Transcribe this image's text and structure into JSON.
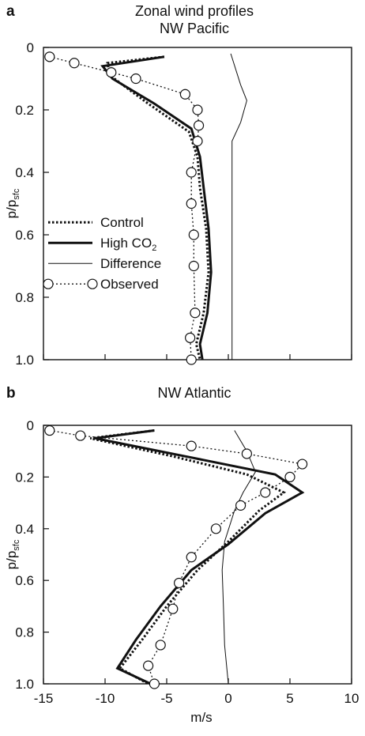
{
  "chart_data": [
    {
      "panel": "a",
      "type": "line",
      "title": "Zonal wind profiles",
      "subtitle": "NW Pacific",
      "ylabel": "p/p_sfc",
      "ylabel_main": "p/p",
      "ylabel_sub": "sfc",
      "xlabel": "",
      "xlim": [
        -15,
        10
      ],
      "ylim": [
        0,
        1.0
      ],
      "y_inverted": true,
      "yticks": [
        "0",
        "0.2",
        "0.4",
        "0.6",
        "0.8",
        "1.0"
      ],
      "yticks_values": [
        0,
        0.2,
        0.4,
        0.6,
        0.8,
        1.0
      ],
      "xticks": [
        "-15",
        "-10",
        "-5",
        "0",
        "5",
        "10"
      ],
      "xticks_values": [
        -15,
        -10,
        -5,
        0,
        5,
        10
      ],
      "show_x_ticklabels": false,
      "legend": {
        "position": "middle-left",
        "entries": [
          {
            "label": "Control",
            "style": "dotted-thick"
          },
          {
            "label": "High CO",
            "sub": "2",
            "style": "solid-thick"
          },
          {
            "label": "Difference",
            "style": "solid-thin"
          },
          {
            "label": "Observed",
            "style": "dotted-circle"
          }
        ]
      },
      "series": [
        {
          "name": "Control",
          "style": "dotted-thick",
          "points": [
            [
              -5.2,
              0.03
            ],
            [
              -9.8,
              0.05
            ],
            [
              -9.6,
              0.09
            ],
            [
              -6.5,
              0.18
            ],
            [
              -3.2,
              0.27
            ],
            [
              -2.5,
              0.35
            ],
            [
              -2.3,
              0.45
            ],
            [
              -1.8,
              0.58
            ],
            [
              -1.6,
              0.72
            ],
            [
              -2.0,
              0.85
            ],
            [
              -2.6,
              0.95
            ],
            [
              -2.3,
              1.0
            ]
          ]
        },
        {
          "name": "High CO2",
          "style": "solid-thick",
          "points": [
            [
              -5.2,
              0.03
            ],
            [
              -10.2,
              0.06
            ],
            [
              -9.4,
              0.1
            ],
            [
              -6.0,
              0.18
            ],
            [
              -3.0,
              0.26
            ],
            [
              -2.3,
              0.35
            ],
            [
              -2.0,
              0.45
            ],
            [
              -1.6,
              0.58
            ],
            [
              -1.4,
              0.72
            ],
            [
              -1.7,
              0.85
            ],
            [
              -2.3,
              0.95
            ],
            [
              -2.1,
              1.0
            ]
          ]
        },
        {
          "name": "Difference",
          "style": "solid-thin",
          "points": [
            [
              0.2,
              0.02
            ],
            [
              1.0,
              0.12
            ],
            [
              1.5,
              0.17
            ],
            [
              1.0,
              0.24
            ],
            [
              0.3,
              0.3
            ],
            [
              0.3,
              0.4
            ],
            [
              0.3,
              0.55
            ],
            [
              0.3,
              0.7
            ],
            [
              0.3,
              0.85
            ],
            [
              0.3,
              1.0
            ]
          ]
        },
        {
          "name": "Observed",
          "style": "dotted-circle",
          "points": [
            [
              -14.5,
              0.03
            ],
            [
              -12.5,
              0.05
            ],
            [
              -9.5,
              0.08
            ],
            [
              -7.5,
              0.1
            ],
            [
              -3.5,
              0.15
            ],
            [
              -2.5,
              0.2
            ],
            [
              -2.4,
              0.25
            ],
            [
              -2.5,
              0.3
            ],
            [
              -3.0,
              0.4
            ],
            [
              -3.0,
              0.5
            ],
            [
              -2.8,
              0.6
            ],
            [
              -2.8,
              0.7
            ],
            [
              -2.7,
              0.85
            ],
            [
              -3.1,
              0.93
            ],
            [
              -3.0,
              1.0
            ]
          ]
        }
      ]
    },
    {
      "panel": "b",
      "type": "line",
      "title": "NW Atlantic",
      "ylabel": "p/p_sfc",
      "ylabel_main": "p/p",
      "ylabel_sub": "sfc",
      "xlabel": "m/s",
      "xlim": [
        -15,
        10
      ],
      "ylim": [
        0,
        1.0
      ],
      "y_inverted": true,
      "yticks": [
        "0",
        "0.2",
        "0.4",
        "0.6",
        "0.8",
        "1.0"
      ],
      "yticks_values": [
        0,
        0.2,
        0.4,
        0.6,
        0.8,
        1.0
      ],
      "xticks": [
        "-15",
        "-10",
        "-5",
        "0",
        "5",
        "10"
      ],
      "xticks_values": [
        -15,
        -10,
        -5,
        0,
        5,
        10
      ],
      "show_x_ticklabels": true,
      "series": [
        {
          "name": "Control",
          "style": "dotted-thick",
          "points": [
            [
              -6.0,
              0.02
            ],
            [
              -11.2,
              0.05
            ],
            [
              -4.5,
              0.12
            ],
            [
              1.5,
              0.19
            ],
            [
              4.5,
              0.26
            ],
            [
              2.5,
              0.33
            ],
            [
              0.0,
              0.45
            ],
            [
              -2.5,
              0.56
            ],
            [
              -5.0,
              0.7
            ],
            [
              -7.0,
              0.83
            ],
            [
              -8.8,
              0.94
            ],
            [
              -6.5,
              1.0
            ]
          ]
        },
        {
          "name": "High CO2",
          "style": "solid-thick",
          "points": [
            [
              -6.0,
              0.02
            ],
            [
              -10.8,
              0.05
            ],
            [
              -3.5,
              0.12
            ],
            [
              3.8,
              0.19
            ],
            [
              6.0,
              0.26
            ],
            [
              3.0,
              0.34
            ],
            [
              0.0,
              0.46
            ],
            [
              -3.0,
              0.56
            ],
            [
              -5.5,
              0.7
            ],
            [
              -7.5,
              0.83
            ],
            [
              -9.0,
              0.94
            ],
            [
              -6.3,
              1.0
            ]
          ]
        },
        {
          "name": "Difference",
          "style": "solid-thin",
          "points": [
            [
              0.5,
              0.02
            ],
            [
              1.5,
              0.1
            ],
            [
              2.2,
              0.18
            ],
            [
              1.2,
              0.26
            ],
            [
              0.5,
              0.33
            ],
            [
              -0.3,
              0.45
            ],
            [
              -0.5,
              0.56
            ],
            [
              -0.4,
              0.7
            ],
            [
              -0.3,
              0.85
            ],
            [
              0.0,
              1.0
            ]
          ]
        },
        {
          "name": "Observed",
          "style": "dotted-circle",
          "points": [
            [
              -14.5,
              0.02
            ],
            [
              -12.0,
              0.04
            ],
            [
              -3.0,
              0.08
            ],
            [
              1.5,
              0.11
            ],
            [
              6.0,
              0.15
            ],
            [
              5.0,
              0.2
            ],
            [
              3.0,
              0.26
            ],
            [
              1.0,
              0.31
            ],
            [
              -1.0,
              0.4
            ],
            [
              -3.0,
              0.51
            ],
            [
              -4.0,
              0.61
            ],
            [
              -4.5,
              0.71
            ],
            [
              -5.5,
              0.85
            ],
            [
              -6.5,
              0.93
            ],
            [
              -6.0,
              1.0
            ]
          ]
        }
      ]
    }
  ]
}
